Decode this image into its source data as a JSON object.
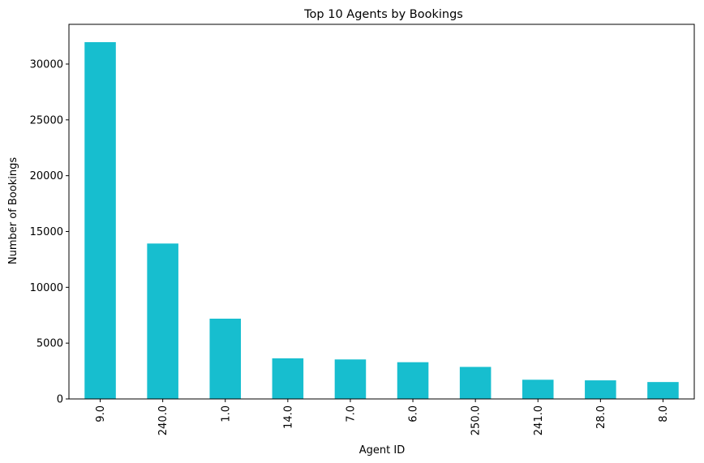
{
  "chart_data": {
    "type": "bar",
    "title": "Top 10 Agents by Bookings",
    "xlabel": "Agent ID",
    "ylabel": "Number of Bookings",
    "categories": [
      "9.0",
      "240.0",
      "1.0",
      "14.0",
      "7.0",
      "6.0",
      "250.0",
      "241.0",
      "28.0",
      "8.0"
    ],
    "values": [
      31961,
      13922,
      7191,
      3640,
      3539,
      3290,
      2870,
      1721,
      1666,
      1514
    ],
    "ylim": [
      0,
      33558
    ],
    "yticks": [
      0,
      5000,
      10000,
      15000,
      20000,
      25000,
      30000
    ],
    "bar_color": "#17becf",
    "grid": false,
    "legend": "none"
  }
}
